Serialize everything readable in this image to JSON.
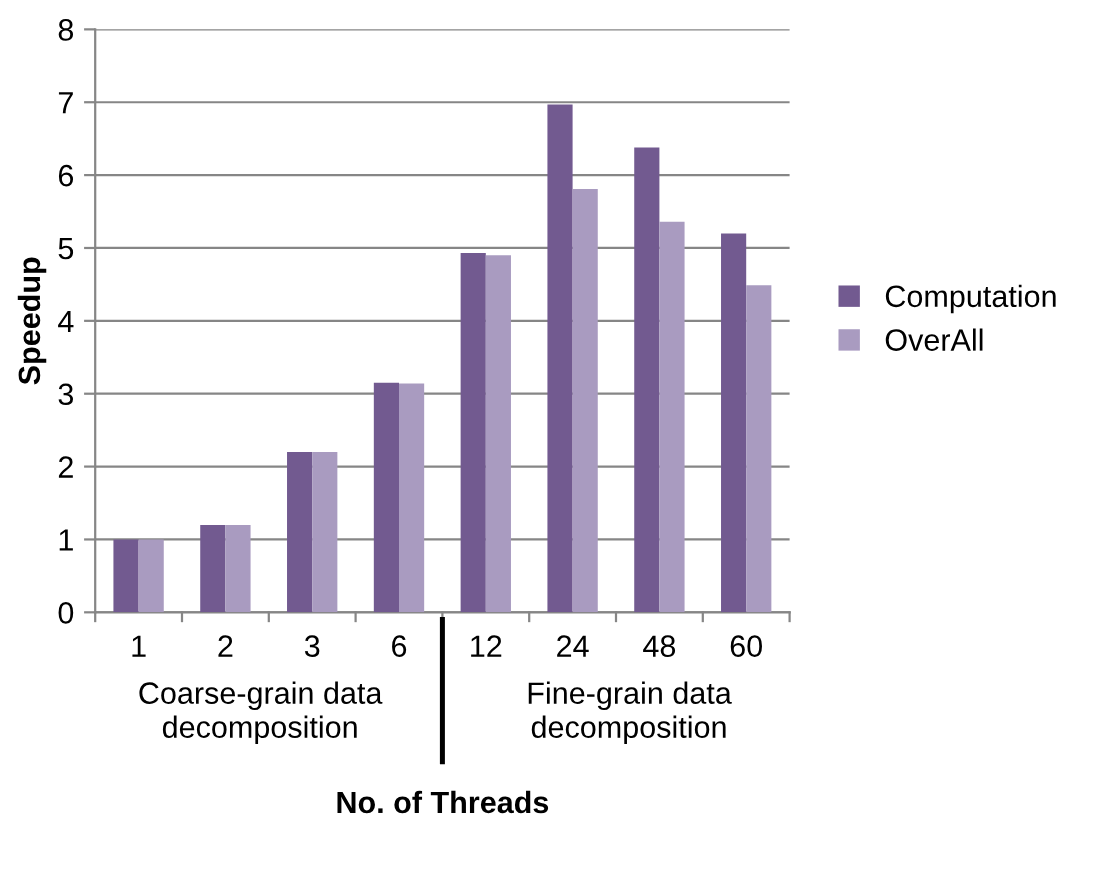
{
  "chart_data": {
    "type": "bar",
    "xlabel": "No. of Threads",
    "ylabel": "Speedup",
    "categories": [
      "1",
      "2",
      "3",
      "6",
      "12",
      "24",
      "48",
      "60"
    ],
    "series": [
      {
        "name": "Computation",
        "color": "#725a90",
        "values": [
          1.0,
          1.2,
          2.2,
          3.15,
          4.93,
          6.97,
          6.38,
          5.2
        ]
      },
      {
        "name": "OverAll",
        "color": "#a99bc0",
        "values": [
          1.0,
          1.2,
          2.2,
          3.14,
          4.9,
          5.81,
          5.36,
          4.49
        ]
      }
    ],
    "annotations": [
      "Coarse-grain data\ndecomposition",
      "Fine-grain data\ndecomposition"
    ],
    "ylim": [
      0,
      8
    ],
    "yticks": [
      0,
      1,
      2,
      3,
      4,
      5,
      6,
      7,
      8
    ],
    "grid": "y",
    "legend": "right"
  }
}
